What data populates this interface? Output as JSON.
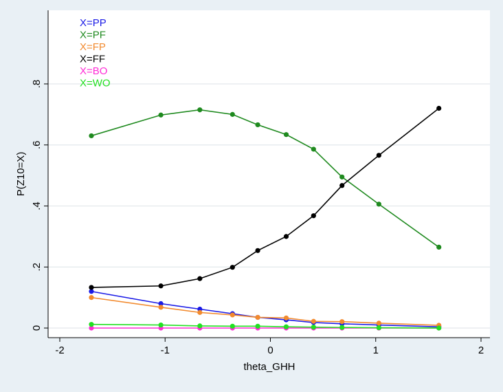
{
  "chart_data": {
    "type": "line",
    "title": "",
    "xlabel": "theta_GHH",
    "ylabel": "P(Z10=X)",
    "xlim": [
      -2,
      2
    ],
    "ylim": [
      0,
      0.8
    ],
    "x_ticks": [
      -2,
      -1,
      0,
      1,
      2
    ],
    "x_tick_labels": [
      "-2",
      "-1",
      "0",
      "1",
      "2"
    ],
    "y_ticks": [
      0,
      0.2,
      0.4,
      0.6,
      0.8
    ],
    "y_tick_labels": [
      "0",
      ".2",
      ".4",
      ".6",
      ".8"
    ],
    "grid": true,
    "legend_position": "top-left",
    "x": [
      -1.7,
      -1.04,
      -0.67,
      -0.36,
      -0.12,
      0.15,
      0.41,
      0.68,
      1.03,
      1.6
    ],
    "series": [
      {
        "name": "X=PP",
        "color": "#1a1ae6",
        "values": [
          0.12,
          0.08,
          0.062,
          0.047,
          0.035,
          0.027,
          0.018,
          0.014,
          0.01,
          0.004
        ]
      },
      {
        "name": "X=PF",
        "color": "#1f8a1f",
        "values": [
          0.63,
          0.698,
          0.715,
          0.7,
          0.666,
          0.634,
          0.586,
          0.495,
          0.406,
          0.265
        ]
      },
      {
        "name": "X=FP",
        "color": "#f28a2e",
        "values": [
          0.1,
          0.068,
          0.051,
          0.043,
          0.035,
          0.033,
          0.022,
          0.021,
          0.016,
          0.009
        ]
      },
      {
        "name": "X=FF",
        "color": "#000000",
        "values": [
          0.133,
          0.138,
          0.162,
          0.199,
          0.254,
          0.3,
          0.368,
          0.467,
          0.566,
          0.72
        ]
      },
      {
        "name": "X=BO",
        "color": "#ff2bd6",
        "values": [
          0.0,
          0.0,
          0.0,
          0.0,
          0.0,
          0.0,
          0.0,
          0.0,
          0.0,
          0.0
        ]
      },
      {
        "name": "X=WO",
        "color": "#22e022",
        "values": [
          0.012,
          0.01,
          0.007,
          0.006,
          0.006,
          0.004,
          0.003,
          0.002,
          0.001,
          0.0
        ]
      }
    ]
  }
}
